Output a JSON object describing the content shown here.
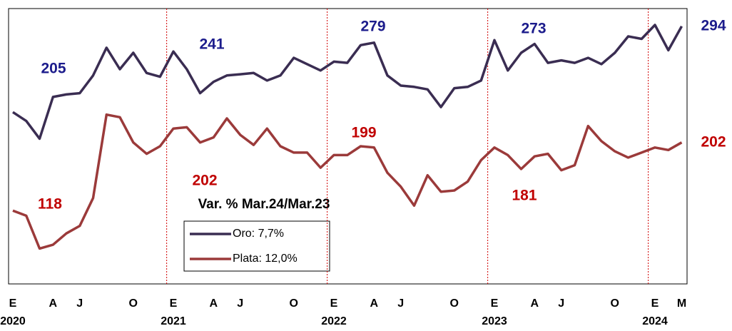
{
  "chart_data": {
    "type": "line",
    "legend_title": "Var. % Mar.24/Mar.23",
    "categories": [
      "E",
      null,
      null,
      "A",
      null,
      "J",
      null,
      null,
      null,
      "O",
      null,
      null,
      "E",
      null,
      null,
      "A",
      null,
      "J",
      null,
      null,
      null,
      "O",
      null,
      null,
      "E",
      null,
      null,
      "A",
      null,
      "J",
      null,
      null,
      null,
      "O",
      null,
      null,
      "E",
      null,
      null,
      "A",
      null,
      "J",
      null,
      null,
      null,
      "O",
      null,
      null,
      "E",
      null,
      "M"
    ],
    "years": [
      "2020",
      "2021",
      "2022",
      "2023",
      "2024"
    ],
    "ylim": [
      90,
      308
    ],
    "series": [
      {
        "name": "Oro: 7,7%",
        "color": "#3a2d52",
        "label_color": "#1c1c8c",
        "values": [
          226,
          219,
          205,
          238,
          240,
          241,
          255,
          277,
          260,
          273,
          257,
          254,
          274,
          260,
          241,
          250,
          255,
          256,
          257,
          251,
          255,
          269,
          264,
          259,
          266,
          265,
          279,
          281,
          255,
          247,
          246,
          244,
          230,
          245,
          246,
          251,
          283,
          259,
          273,
          280,
          265,
          267,
          265,
          269,
          264,
          273,
          286,
          284,
          295,
          275,
          294
        ],
        "value_labels": [
          null,
          null,
          "205",
          null,
          null,
          null,
          null,
          null,
          null,
          null,
          null,
          null,
          null,
          null,
          "241",
          null,
          null,
          null,
          null,
          null,
          null,
          null,
          null,
          null,
          null,
          null,
          "279",
          null,
          null,
          null,
          null,
          null,
          null,
          null,
          null,
          null,
          null,
          null,
          "273",
          null,
          null,
          null,
          null,
          null,
          null,
          null,
          null,
          null,
          null,
          null,
          "294"
        ]
      },
      {
        "name": "Plata: 12,0%",
        "color": "#9b3a3a",
        "label_color": "#c00000",
        "values": [
          148,
          144,
          118,
          121,
          130,
          136,
          158,
          224,
          222,
          202,
          193,
          199,
          213,
          214,
          202,
          206,
          221,
          208,
          200,
          213,
          199,
          194,
          194,
          182,
          192,
          192,
          199,
          198,
          178,
          167,
          152,
          176,
          163,
          164,
          171,
          188,
          198,
          192,
          181,
          191,
          193,
          180,
          184,
          215,
          203,
          195,
          190,
          194,
          198,
          196,
          202
        ],
        "value_labels": [
          null,
          null,
          "118",
          null,
          null,
          null,
          null,
          null,
          null,
          null,
          null,
          null,
          null,
          null,
          "202",
          null,
          null,
          null,
          null,
          null,
          null,
          null,
          null,
          null,
          null,
          null,
          "199",
          null,
          null,
          null,
          null,
          null,
          null,
          null,
          null,
          null,
          null,
          null,
          "181",
          null,
          null,
          null,
          null,
          null,
          null,
          null,
          null,
          null,
          null,
          null,
          "202"
        ]
      }
    ]
  }
}
